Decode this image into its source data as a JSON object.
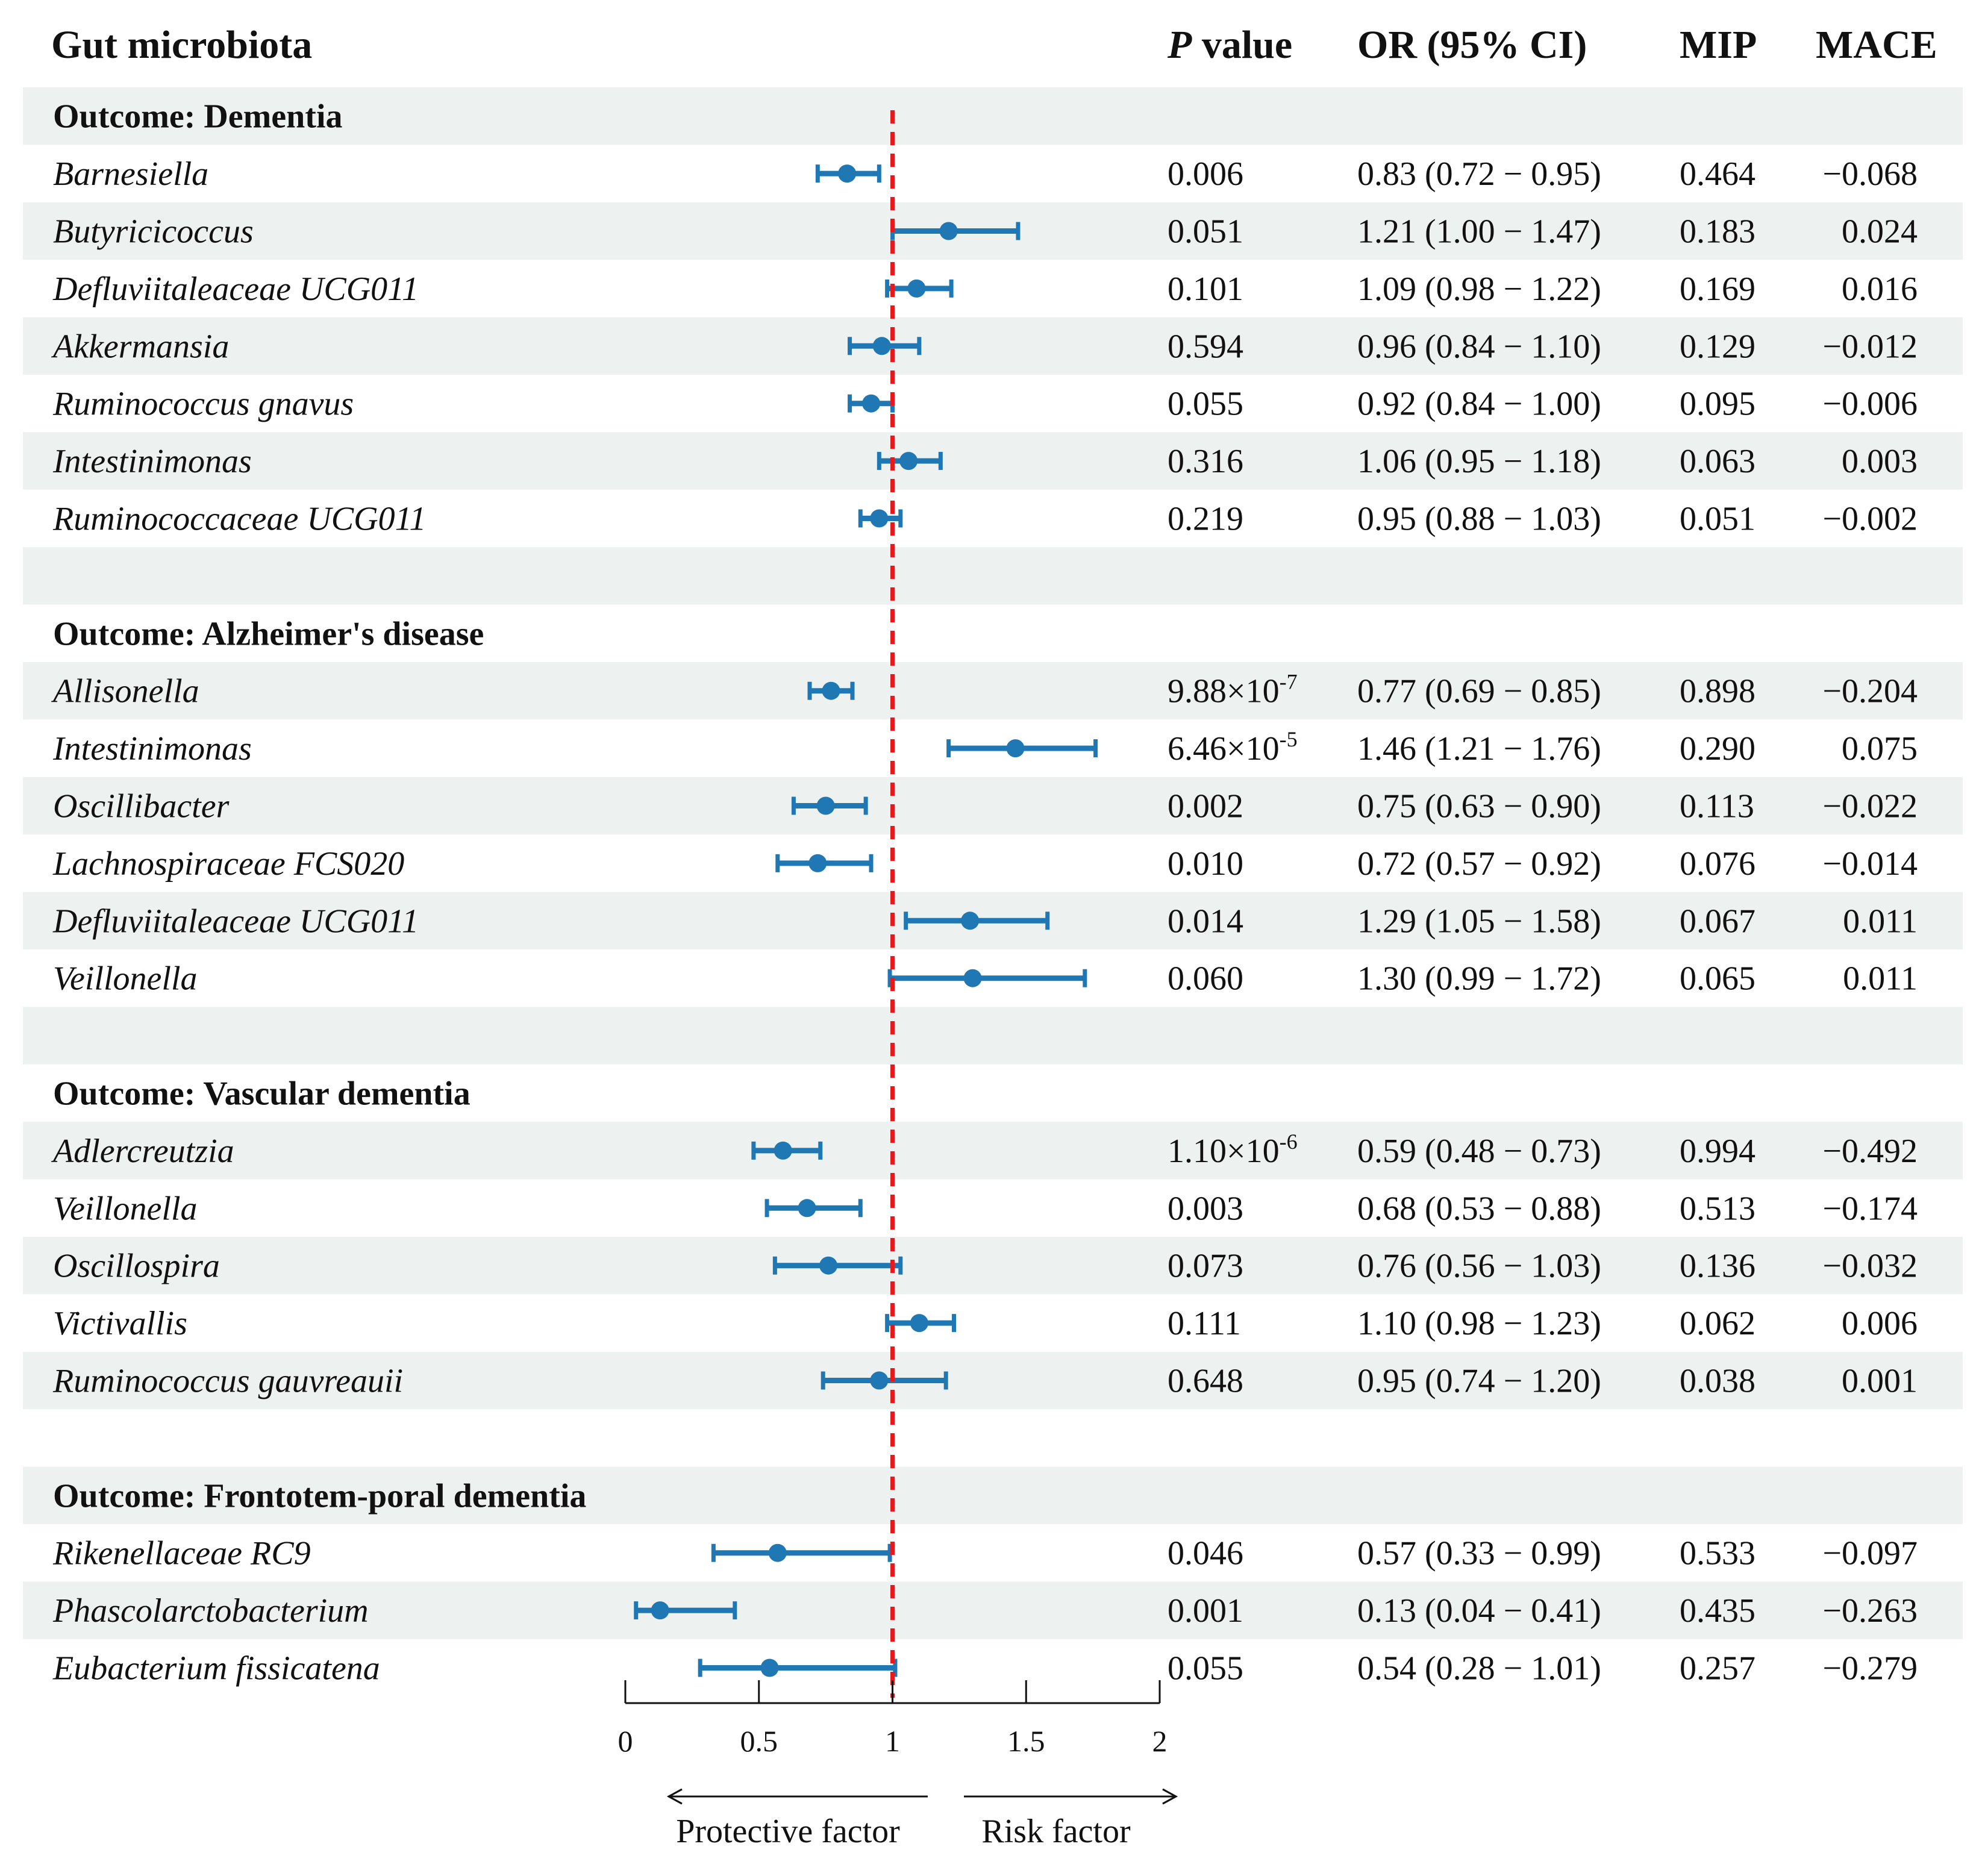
{
  "header": {
    "gut_microbiota": "Gut microbiota",
    "p_value_italic": "P",
    "p_value_rest": " value",
    "or_ci": "OR (95% CI)",
    "mip": "MIP",
    "mace": "MACE"
  },
  "colors": {
    "point": "#1f77b4",
    "reference_line": "#e41a1c",
    "stripe": "#edf1ef"
  },
  "chart_data": {
    "type": "forest",
    "reference_value": 1,
    "xlim": [
      0,
      2
    ],
    "xticks": [
      "0",
      "0.5",
      "1",
      "1.5",
      "2"
    ],
    "xtick_values": [
      0,
      0.5,
      1,
      1.5,
      2
    ],
    "xlabel_left": "Protective factor",
    "xlabel_right": "Risk factor",
    "groups": [
      {
        "title": "Outcome: Dementia",
        "rows": [
          {
            "name": "Barnesiella",
            "p": "0.006",
            "or_text": "0.83 (0.72 − 0.95)",
            "mip": "0.464",
            "mace": "−0.068",
            "or": 0.83,
            "lo": 0.72,
            "hi": 0.95
          },
          {
            "name": "Butyricicoccus",
            "p": "0.051",
            "or_text": "1.21 (1.00 − 1.47)",
            "mip": "0.183",
            "mace": "0.024",
            "or": 1.21,
            "lo": 1.0,
            "hi": 1.47
          },
          {
            "name": "Defluviitaleaceae UCG011",
            "p": "0.101",
            "or_text": "1.09 (0.98 − 1.22)",
            "mip": "0.169",
            "mace": "0.016",
            "or": 1.09,
            "lo": 0.98,
            "hi": 1.22
          },
          {
            "name": "Akkermansia",
            "p": "0.594",
            "or_text": "0.96 (0.84 − 1.10)",
            "mip": "0.129",
            "mace": "−0.012",
            "or": 0.96,
            "lo": 0.84,
            "hi": 1.1
          },
          {
            "name": "Ruminococcus gnavus",
            "p": "0.055",
            "or_text": "0.92 (0.84 − 1.00)",
            "mip": "0.095",
            "mace": "−0.006",
            "or": 0.92,
            "lo": 0.84,
            "hi": 1.0
          },
          {
            "name": "Intestinimonas",
            "p": "0.316",
            "or_text": "1.06 (0.95 − 1.18)",
            "mip": "0.063",
            "mace": "0.003",
            "or": 1.06,
            "lo": 0.95,
            "hi": 1.18
          },
          {
            "name": "Ruminococcaceae UCG011",
            "p": "0.219",
            "or_text": "0.95 (0.88 − 1.03)",
            "mip": "0.051",
            "mace": "−0.002",
            "or": 0.95,
            "lo": 0.88,
            "hi": 1.03
          }
        ]
      },
      {
        "title": "Outcome: Alzheimer's disease",
        "rows": [
          {
            "name": "Allisonella",
            "p_base": "9.88×10",
            "p_exp": "-7",
            "or_text": "0.77 (0.69 − 0.85)",
            "mip": "0.898",
            "mace": "−0.204",
            "or": 0.77,
            "lo": 0.69,
            "hi": 0.85
          },
          {
            "name": "Intestinimonas",
            "p_base": "6.46×10",
            "p_exp": "-5",
            "or_text": "1.46 (1.21 − 1.76)",
            "mip": "0.290",
            "mace": "0.075",
            "or": 1.46,
            "lo": 1.21,
            "hi": 1.76
          },
          {
            "name": "Oscillibacter",
            "p": "0.002",
            "or_text": "0.75 (0.63 − 0.90)",
            "mip": "0.113",
            "mace": "−0.022",
            "or": 0.75,
            "lo": 0.63,
            "hi": 0.9
          },
          {
            "name": "Lachnospiraceae FCS020",
            "p": "0.010",
            "or_text": "0.72 (0.57 − 0.92)",
            "mip": "0.076",
            "mace": "−0.014",
            "or": 0.72,
            "lo": 0.57,
            "hi": 0.92
          },
          {
            "name": "Defluviitaleaceae UCG011",
            "p": "0.014",
            "or_text": "1.29 (1.05 − 1.58)",
            "mip": "0.067",
            "mace": "0.011",
            "or": 1.29,
            "lo": 1.05,
            "hi": 1.58
          },
          {
            "name": "Veillonella",
            "p": "0.060",
            "or_text": "1.30 (0.99 − 1.72)",
            "mip": "0.065",
            "mace": "0.011",
            "or": 1.3,
            "lo": 0.99,
            "hi": 1.72
          }
        ]
      },
      {
        "title": "Outcome: Vascular dementia",
        "rows": [
          {
            "name": "Adlercreutzia",
            "p_base": "1.10×10",
            "p_exp": "-6",
            "or_text": "0.59 (0.48 − 0.73)",
            "mip": "0.994",
            "mace": "−0.492",
            "or": 0.59,
            "lo": 0.48,
            "hi": 0.73
          },
          {
            "name": "Veillonella",
            "p": "0.003",
            "or_text": "0.68 (0.53 − 0.88)",
            "mip": "0.513",
            "mace": "−0.174",
            "or": 0.68,
            "lo": 0.53,
            "hi": 0.88
          },
          {
            "name": "Oscillospira",
            "p": "0.073",
            "or_text": "0.76 (0.56 − 1.03)",
            "mip": "0.136",
            "mace": "−0.032",
            "or": 0.76,
            "lo": 0.56,
            "hi": 1.03
          },
          {
            "name": "Victivallis",
            "p": "0.111",
            "or_text": "1.10 (0.98 − 1.23)",
            "mip": "0.062",
            "mace": "0.006",
            "or": 1.1,
            "lo": 0.98,
            "hi": 1.23
          },
          {
            "name": "Ruminococcus gauvreauii",
            "p": "0.648",
            "or_text": "0.95 (0.74 − 1.20)",
            "mip": "0.038",
            "mace": "0.001",
            "or": 0.95,
            "lo": 0.74,
            "hi": 1.2
          }
        ]
      },
      {
        "title": "Outcome: Frontotem-poral dementia",
        "rows": [
          {
            "name": "Rikenellaceae RC9",
            "p": "0.046",
            "or_text": "0.57 (0.33 − 0.99)",
            "mip": "0.533",
            "mace": "−0.097",
            "or": 0.57,
            "lo": 0.33,
            "hi": 0.99
          },
          {
            "name": "Phascolarctobacterium",
            "p": "0.001",
            "or_text": "0.13 (0.04 − 0.41)",
            "mip": "0.435",
            "mace": "−0.263",
            "or": 0.13,
            "lo": 0.04,
            "hi": 0.41
          },
          {
            "name": "Eubacterium fissicatena",
            "p": "0.055",
            "or_text": "0.54 (0.28 − 1.01)",
            "mip": "0.257",
            "mace": "−0.279",
            "or": 0.54,
            "lo": 0.28,
            "hi": 1.01
          }
        ]
      }
    ]
  }
}
